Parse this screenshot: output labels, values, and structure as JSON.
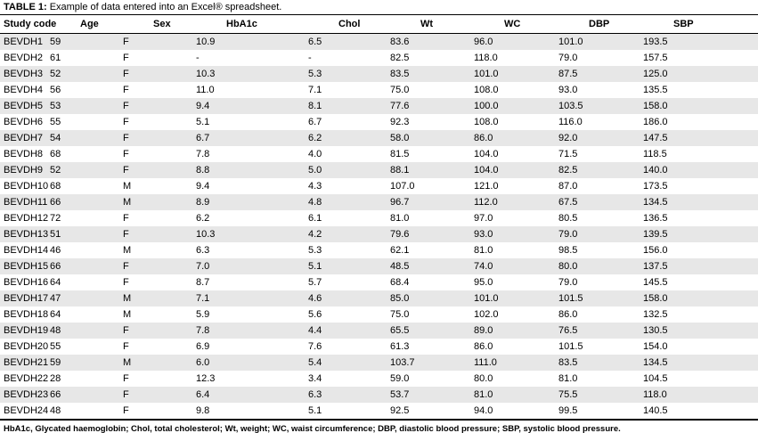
{
  "table": {
    "title_label": "TABLE 1:",
    "title_text": "Example of data entered into an Excel® spreadsheet.",
    "columns": [
      "Study code",
      "Age",
      "Sex",
      "HbA1c",
      "Chol",
      "Wt",
      "WC",
      "DBP",
      "SBP"
    ],
    "rows": [
      [
        "BEVDH1",
        "59",
        "F",
        "10.9",
        "6.5",
        "83.6",
        "96.0",
        "101.0",
        "193.5"
      ],
      [
        "BEVDH2",
        "61",
        "F",
        "-",
        "-",
        "82.5",
        "118.0",
        "79.0",
        "157.5"
      ],
      [
        "BEVDH3",
        "52",
        "F",
        "10.3",
        "5.3",
        "83.5",
        "101.0",
        "87.5",
        "125.0"
      ],
      [
        "BEVDH4",
        "56",
        "F",
        "11.0",
        "7.1",
        "75.0",
        "108.0",
        "93.0",
        "135.5"
      ],
      [
        "BEVDH5",
        "53",
        "F",
        "9.4",
        "8.1",
        "77.6",
        "100.0",
        "103.5",
        "158.0"
      ],
      [
        "BEVDH6",
        "55",
        "F",
        "5.1",
        "6.7",
        "92.3",
        "108.0",
        "116.0",
        "186.0"
      ],
      [
        "BEVDH7",
        "54",
        "F",
        "6.7",
        "6.2",
        "58.0",
        "86.0",
        "92.0",
        "147.5"
      ],
      [
        "BEVDH8",
        "68",
        "F",
        "7.8",
        "4.0",
        "81.5",
        "104.0",
        "71.5",
        "118.5"
      ],
      [
        "BEVDH9",
        "52",
        "F",
        "8.8",
        "5.0",
        "88.1",
        "104.0",
        "82.5",
        "140.0"
      ],
      [
        "BEVDH10",
        "68",
        "M",
        "9.4",
        "4.3",
        "107.0",
        "121.0",
        "87.0",
        "173.5"
      ],
      [
        "BEVDH11",
        "66",
        "M",
        "8.9",
        "4.8",
        "96.7",
        "112.0",
        "67.5",
        "134.5"
      ],
      [
        "BEVDH12",
        "72",
        "F",
        "6.2",
        "6.1",
        "81.0",
        "97.0",
        "80.5",
        "136.5"
      ],
      [
        "BEVDH13",
        "51",
        "F",
        "10.3",
        "4.2",
        "79.6",
        "93.0",
        "79.0",
        "139.5"
      ],
      [
        "BEVDH14",
        "46",
        "M",
        "6.3",
        "5.3",
        "62.1",
        "81.0",
        "98.5",
        "156.0"
      ],
      [
        "BEVDH15",
        "66",
        "F",
        "7.0",
        "5.1",
        "48.5",
        "74.0",
        "80.0",
        "137.5"
      ],
      [
        "BEVDH16",
        "64",
        "F",
        "8.7",
        "5.7",
        "68.4",
        "95.0",
        "79.0",
        "145.5"
      ],
      [
        "BEVDH17",
        "47",
        "M",
        "7.1",
        "4.6",
        "85.0",
        "101.0",
        "101.5",
        "158.0"
      ],
      [
        "BEVDH18",
        "64",
        "M",
        "5.9",
        "5.6",
        "75.0",
        "102.0",
        "86.0",
        "132.5"
      ],
      [
        "BEVDH19",
        "48",
        "F",
        "7.8",
        "4.4",
        "65.5",
        "89.0",
        "76.5",
        "130.5"
      ],
      [
        "BEVDH20",
        "55",
        "F",
        "6.9",
        "7.6",
        "61.3",
        "86.0",
        "101.5",
        "154.0"
      ],
      [
        "BEVDH21",
        "59",
        "M",
        "6.0",
        "5.4",
        "103.7",
        "111.0",
        "83.5",
        "134.5"
      ],
      [
        "BEVDH22",
        "28",
        "F",
        "12.3",
        "3.4",
        "59.0",
        "80.0",
        "81.0",
        "104.5"
      ],
      [
        "BEVDH23",
        "66",
        "F",
        "6.4",
        "6.3",
        "53.7",
        "81.0",
        "75.5",
        "118.0"
      ],
      [
        "BEVDH24",
        "48",
        "F",
        "9.8",
        "5.1",
        "92.5",
        "94.0",
        "99.5",
        "140.5"
      ]
    ],
    "footnote": "HbA1c, Glycated haemoglobin; Chol, total cholesterol; Wt, weight; WC, waist circumference; DBP, diastolic blood pressure; SBP, systolic blood pressure."
  },
  "colors": {
    "stripe": "#e7e7e7",
    "rule": "#000000"
  }
}
